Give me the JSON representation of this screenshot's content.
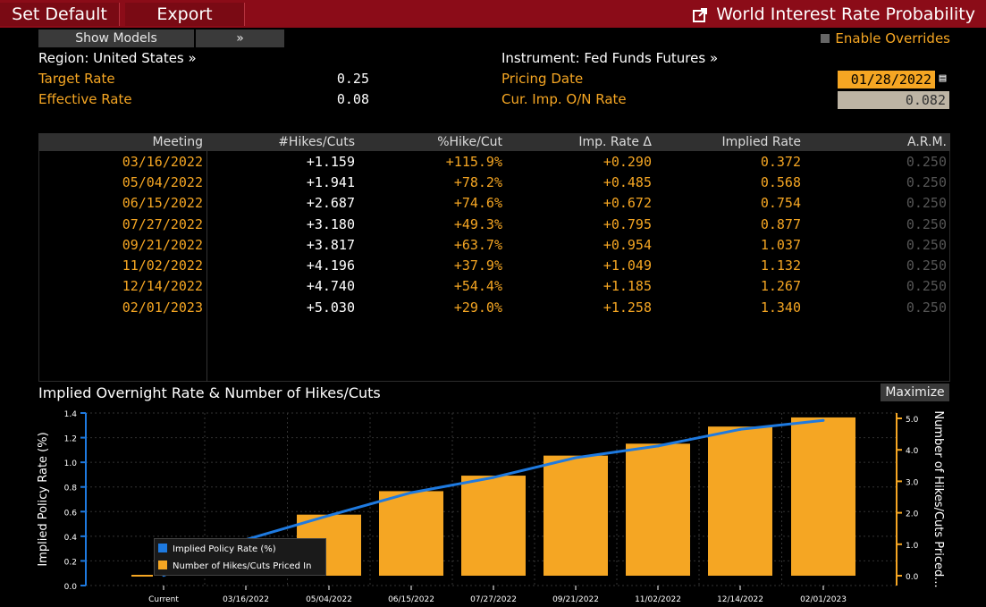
{
  "toolbar": {
    "set_default": "Set Default",
    "export": "Export",
    "title": "World Interest Rate Probability",
    "show_models": "Show Models",
    "expand": "»",
    "enable_overrides": "Enable Overrides"
  },
  "header": {
    "region_label": "Region: United States »",
    "target_rate_label": "Target Rate",
    "target_rate_value": "0.25",
    "effective_rate_label": "Effective Rate",
    "effective_rate_value": "0.08",
    "instrument_label": "Instrument: Fed Funds Futures »",
    "pricing_date_label": "Pricing Date",
    "pricing_date_value": "01/28/2022",
    "cur_imp_label": "Cur. Imp. O/N Rate",
    "cur_imp_value": "0.082"
  },
  "table": {
    "columns": [
      "Meeting",
      "#Hikes/Cuts",
      "%Hike/Cut",
      "Imp. Rate Δ",
      "Implied Rate",
      "A.R.M."
    ],
    "rows": [
      [
        "03/16/2022",
        "+1.159",
        "+115.9%",
        "+0.290",
        "0.372",
        "0.250"
      ],
      [
        "05/04/2022",
        "+1.941",
        "+78.2%",
        "+0.485",
        "0.568",
        "0.250"
      ],
      [
        "06/15/2022",
        "+2.687",
        "+74.6%",
        "+0.672",
        "0.754",
        "0.250"
      ],
      [
        "07/27/2022",
        "+3.180",
        "+49.3%",
        "+0.795",
        "0.877",
        "0.250"
      ],
      [
        "09/21/2022",
        "+3.817",
        "+63.7%",
        "+0.954",
        "1.037",
        "0.250"
      ],
      [
        "11/02/2022",
        "+4.196",
        "+37.9%",
        "+1.049",
        "1.132",
        "0.250"
      ],
      [
        "12/14/2022",
        "+4.740",
        "+54.4%",
        "+1.185",
        "1.267",
        "0.250"
      ],
      [
        "02/01/2023",
        "+5.030",
        "+29.0%",
        "+1.258",
        "1.340",
        "0.250"
      ]
    ]
  },
  "chart_panel": {
    "title": "Implied Overnight Rate & Number of Hikes/Cuts",
    "maximize": "Maximize"
  },
  "chart_data": {
    "type": "bar",
    "categories": [
      "Current",
      "03/16/2022",
      "05/04/2022",
      "06/15/2022",
      "07/27/2022",
      "09/21/2022",
      "11/02/2022",
      "12/14/2022",
      "02/01/2023"
    ],
    "series": [
      {
        "name": "Implied Policy Rate (%)",
        "type": "line",
        "axis": "left",
        "color": "#1e7ae0",
        "values": [
          0.082,
          0.372,
          0.568,
          0.754,
          0.877,
          1.037,
          1.132,
          1.267,
          1.34
        ]
      },
      {
        "name": "Number of Hikes/Cuts Priced In",
        "type": "bar",
        "axis": "right",
        "color": "#f5a623",
        "values": [
          0,
          1.159,
          1.941,
          2.687,
          3.18,
          3.817,
          4.196,
          4.74,
          5.03
        ]
      }
    ],
    "ylabel": "Implied Policy Rate (%)",
    "y2label": "Number of Hikes/Cuts Priced...",
    "ylim": [
      0.0,
      1.4
    ],
    "y2lim": [
      0.0,
      5.0
    ],
    "yticks": [
      "0.0",
      "0.2",
      "0.4",
      "0.6",
      "0.8",
      "1.0",
      "1.2",
      "1.4"
    ],
    "y2ticks": [
      "0.0",
      "1.0",
      "2.0",
      "3.0",
      "4.0",
      "5.0"
    ],
    "grid": true,
    "legend": "bottom-left"
  }
}
